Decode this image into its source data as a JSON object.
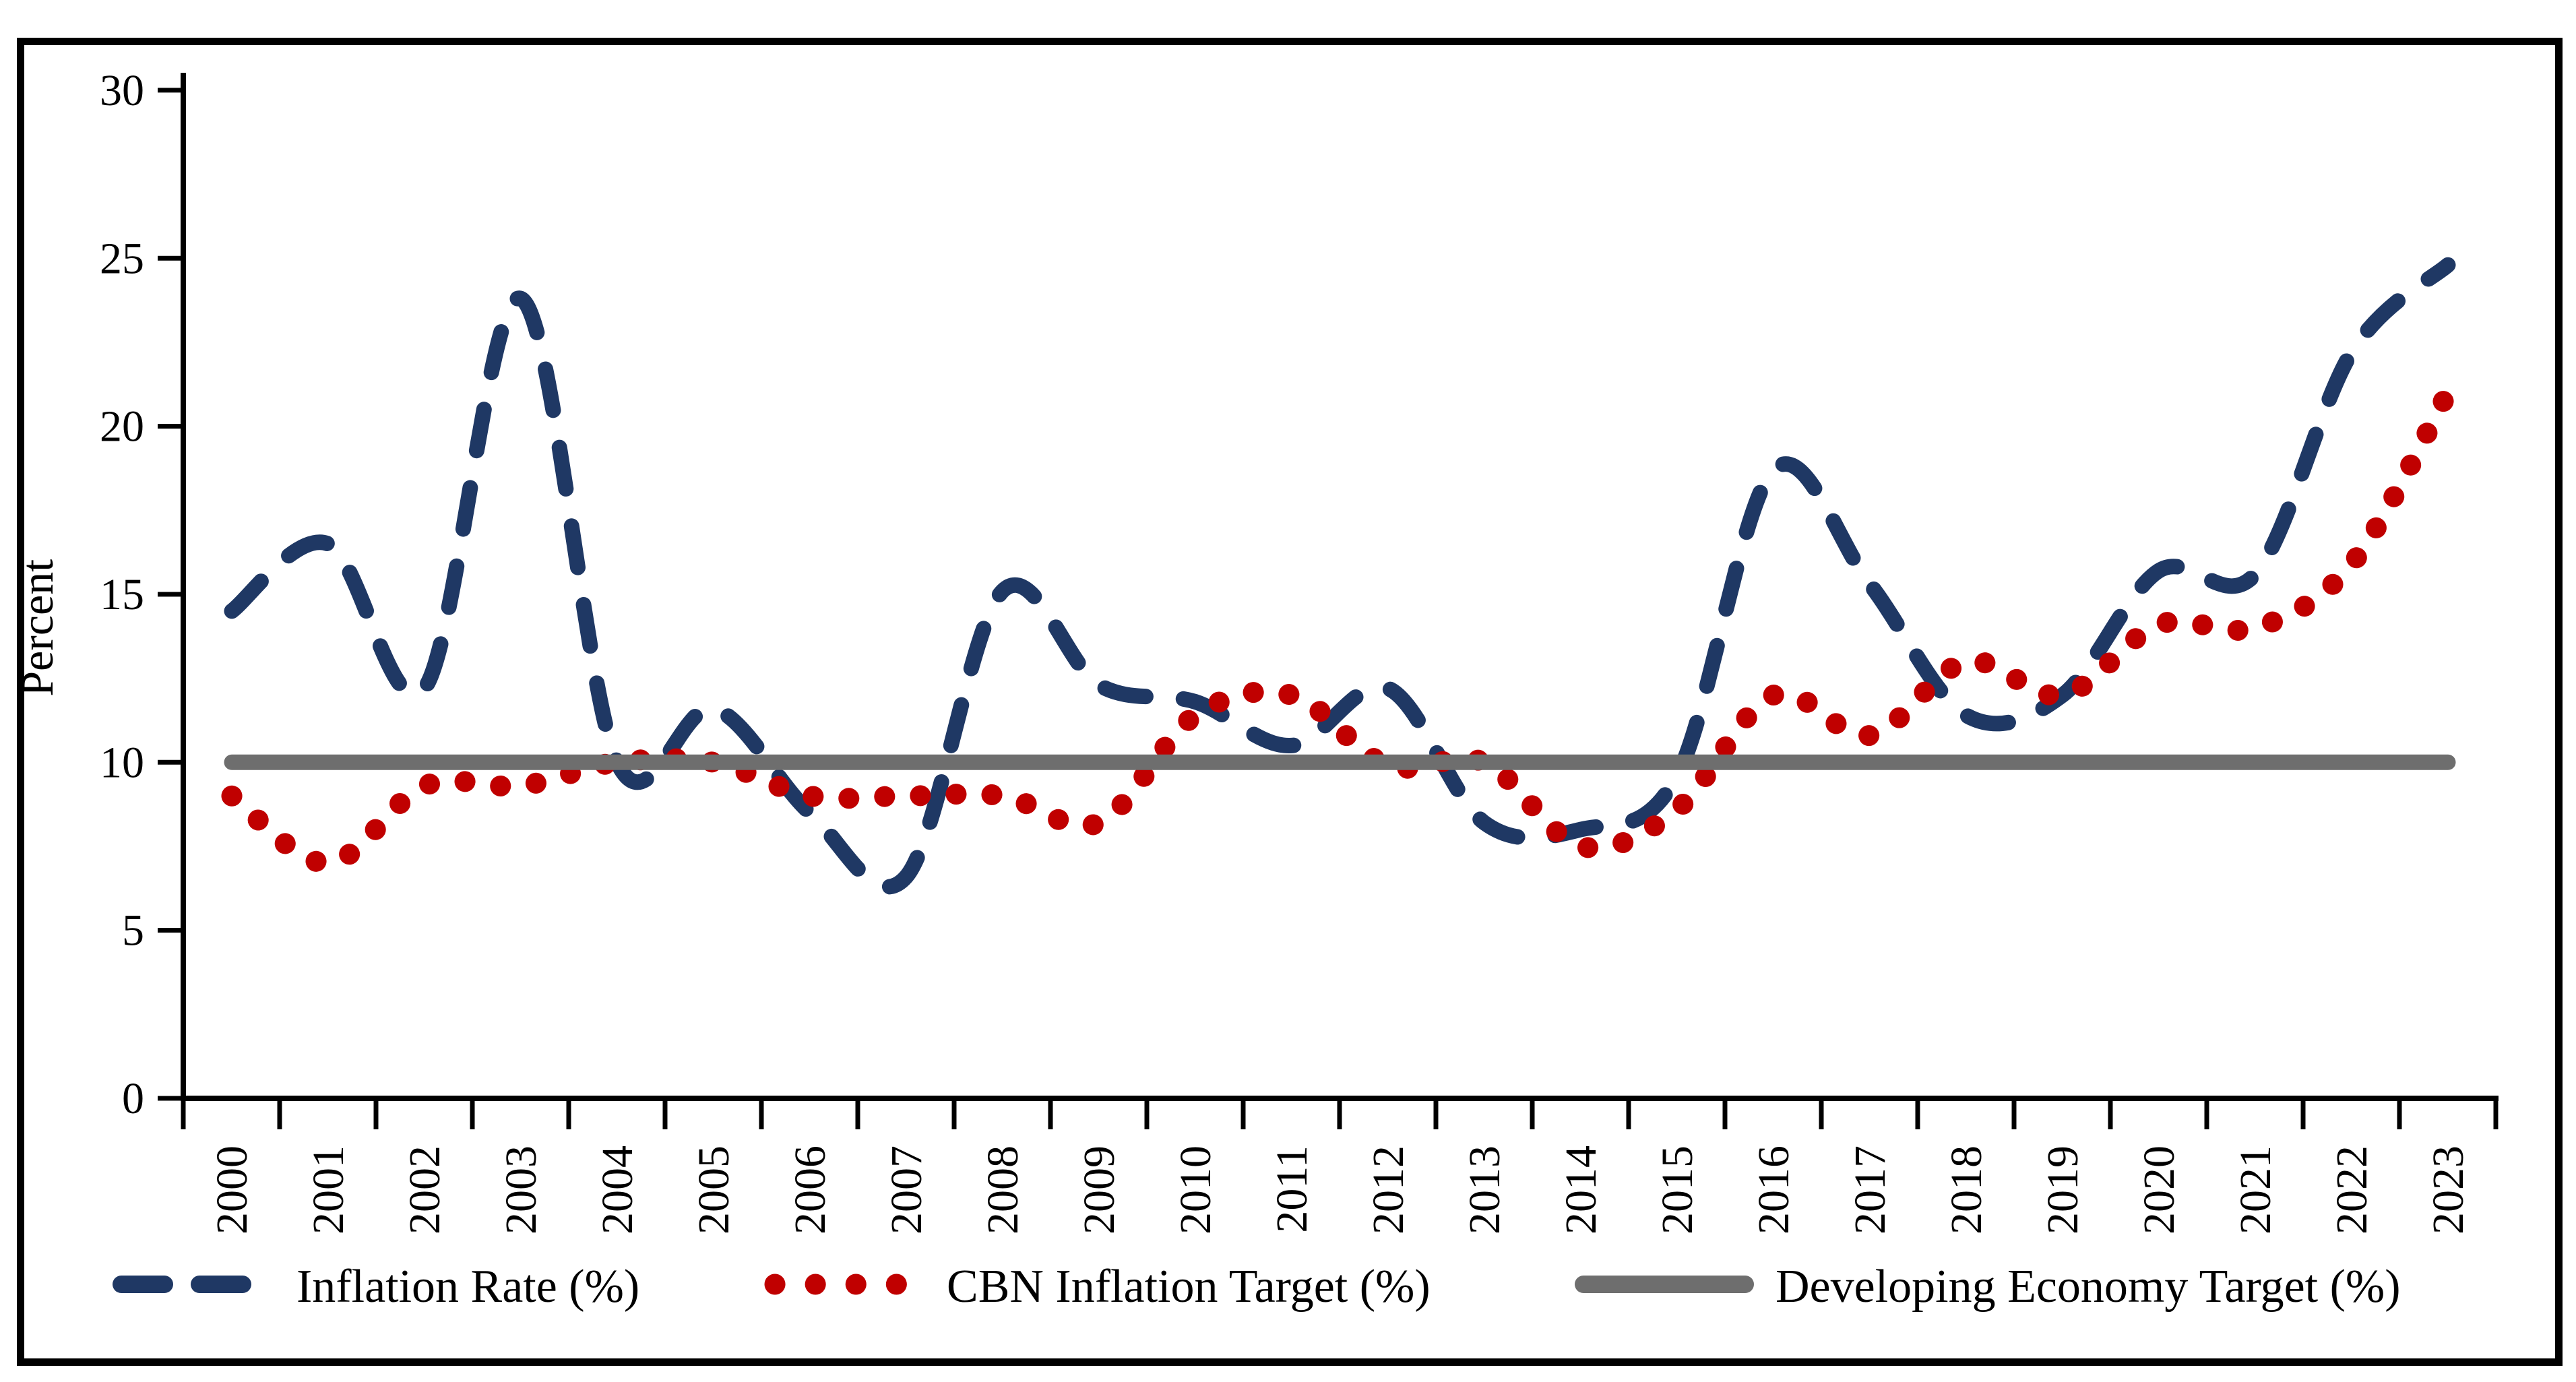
{
  "chart_data": {
    "type": "line",
    "title": "",
    "xlabel": "",
    "ylabel": "Percent",
    "ylim": [
      0,
      30
    ],
    "y_ticks": [
      0,
      5,
      10,
      15,
      20,
      25,
      30
    ],
    "grid": false,
    "legend_position": "bottom",
    "smoothing": "catmull-rom",
    "categories": [
      "2000",
      "2001",
      "2002",
      "2003",
      "2004",
      "2005",
      "2006",
      "2007",
      "2008",
      "2009",
      "2010",
      "2011",
      "2012",
      "2013",
      "2014",
      "2015",
      "2016",
      "2017",
      "2018",
      "2019",
      "2020",
      "2021",
      "2022",
      "2023"
    ],
    "series": [
      {
        "name": "Inflation Rate (%)",
        "style": "dashed",
        "color": "#1f3864",
        "values": [
          14.5,
          16.5,
          12.2,
          23.8,
          10.0,
          11.6,
          8.5,
          6.6,
          15.1,
          12.3,
          11.8,
          10.5,
          12.2,
          8.2,
          8.0,
          9.6,
          18.7,
          15.3,
          11.4,
          12.0,
          15.7,
          15.6,
          22.2,
          24.8
        ]
      },
      {
        "name": "CBN Inflation Target (%)",
        "style": "dotted",
        "color": "#c00000",
        "values": [
          9.0,
          7.0,
          9.3,
          9.3,
          10.0,
          10.0,
          9.0,
          9.0,
          9.0,
          8.2,
          11.4,
          12.0,
          9.9,
          10.0,
          7.5,
          8.6,
          12.0,
          10.8,
          13.0,
          12.0,
          14.1,
          14.0,
          15.9,
          21.0
        ]
      },
      {
        "name": "Developing Economy Target (%)",
        "style": "solid",
        "color": "#6e6e6e",
        "values": [
          10,
          10,
          10,
          10,
          10,
          10,
          10,
          10,
          10,
          10,
          10,
          10,
          10,
          10,
          10,
          10,
          10,
          10,
          10,
          10,
          10,
          10,
          10,
          10
        ]
      }
    ]
  }
}
